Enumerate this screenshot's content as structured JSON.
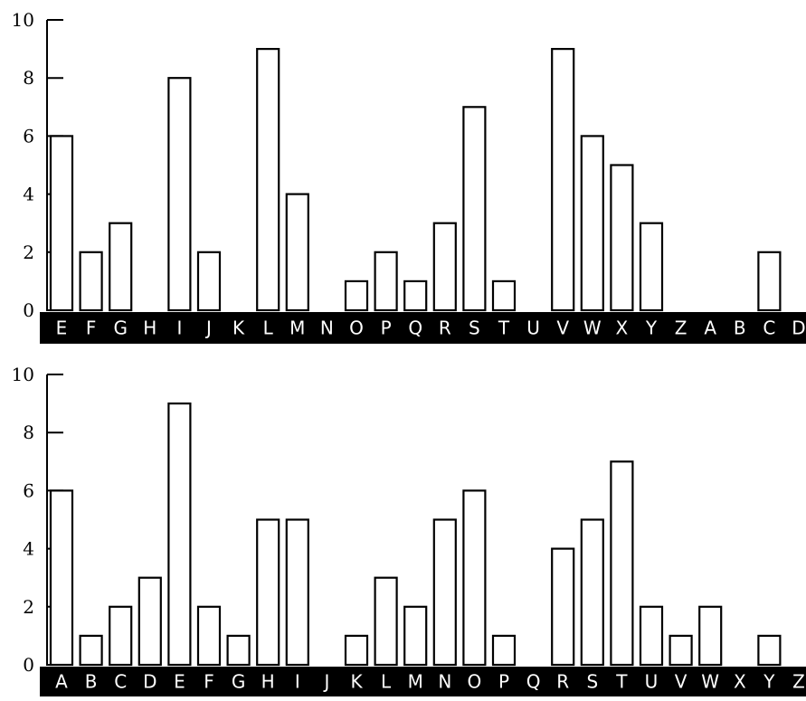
{
  "colors": {
    "bar_fill": "#ffffff",
    "bar_stroke": "#000000",
    "label_band": "#000000",
    "label_text": "#ffffff"
  },
  "chart_data": [
    {
      "type": "bar",
      "title": "",
      "xlabel": "",
      "ylabel": "",
      "ylim": [
        0,
        10
      ],
      "yticks": [
        0,
        2,
        4,
        6,
        8,
        10
      ],
      "grid": false,
      "categories": [
        "E",
        "F",
        "G",
        "H",
        "I",
        "J",
        "K",
        "L",
        "M",
        "N",
        "O",
        "P",
        "Q",
        "R",
        "S",
        "T",
        "U",
        "V",
        "W",
        "X",
        "Y",
        "Z",
        "A",
        "B",
        "C",
        "D"
      ],
      "values": [
        6,
        2,
        3,
        0,
        8,
        2,
        0,
        9,
        4,
        0,
        1,
        2,
        1,
        3,
        7,
        1,
        0,
        9,
        6,
        5,
        3,
        0,
        0,
        0,
        2,
        0
      ]
    },
    {
      "type": "bar",
      "title": "",
      "xlabel": "",
      "ylabel": "",
      "ylim": [
        0,
        10
      ],
      "yticks": [
        0,
        2,
        4,
        6,
        8,
        10
      ],
      "grid": false,
      "categories": [
        "A",
        "B",
        "C",
        "D",
        "E",
        "F",
        "G",
        "H",
        "I",
        "J",
        "K",
        "L",
        "M",
        "N",
        "O",
        "P",
        "Q",
        "R",
        "S",
        "T",
        "U",
        "V",
        "W",
        "X",
        "Y",
        "Z"
      ],
      "values": [
        6,
        1,
        2,
        3,
        9,
        2,
        1,
        5,
        5,
        0,
        1,
        3,
        2,
        5,
        6,
        1,
        0,
        4,
        5,
        7,
        2,
        1,
        2,
        0,
        1,
        0
      ]
    }
  ]
}
